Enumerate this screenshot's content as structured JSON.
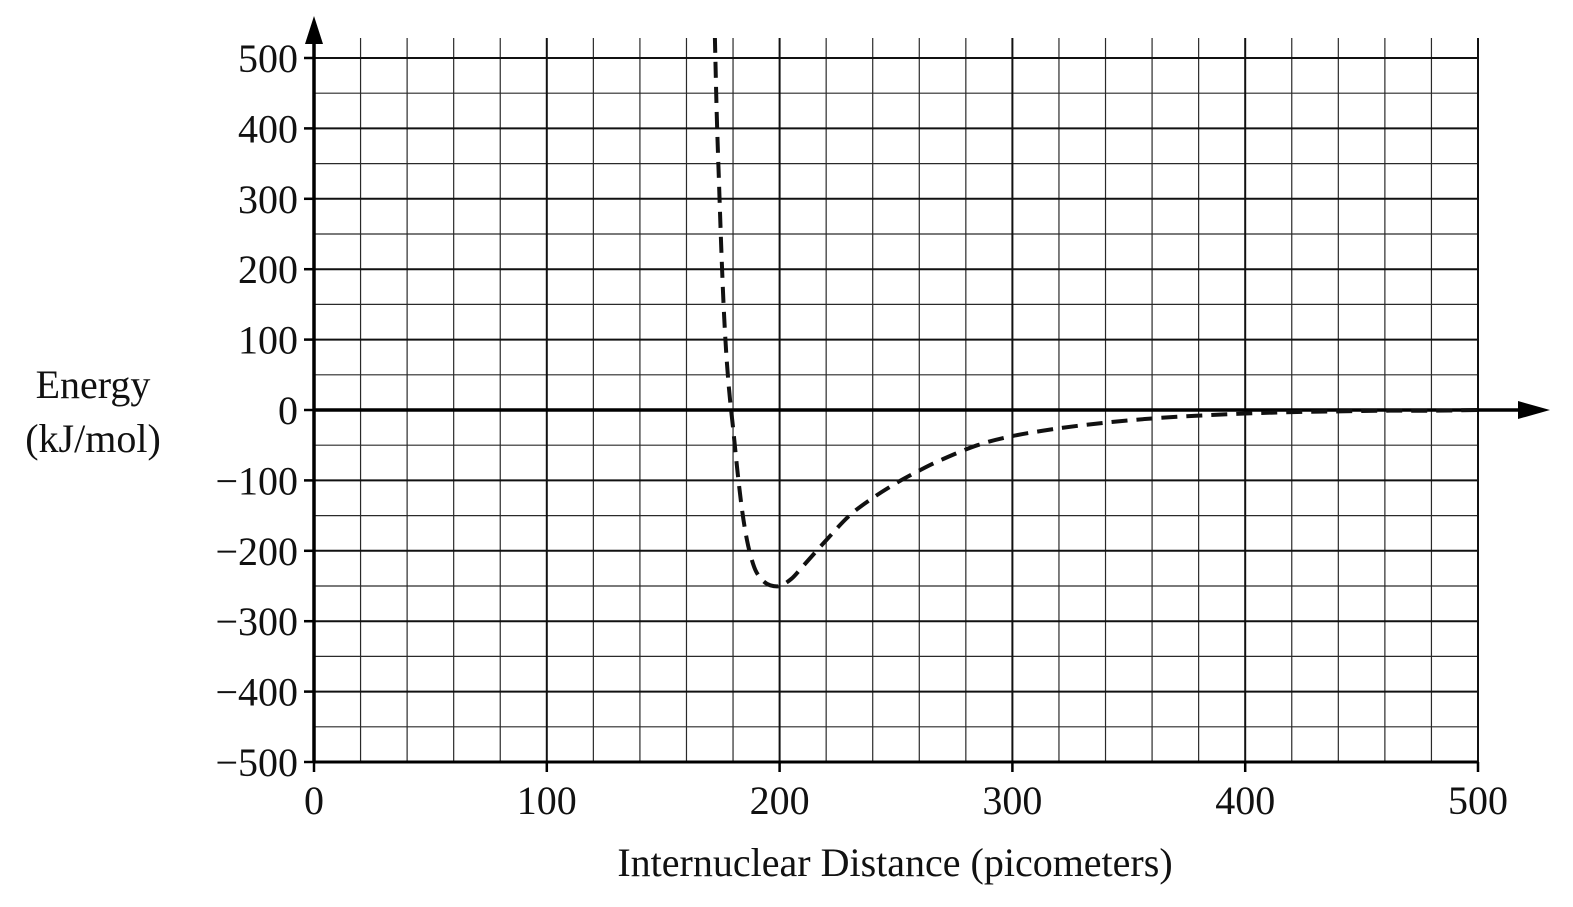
{
  "chart_data": {
    "type": "line",
    "title": "",
    "xlabel": "Internuclear Distance (picometers)",
    "ylabel_lines": [
      "Energy",
      "(kJ/mol)"
    ],
    "xlim": [
      0,
      500
    ],
    "ylim": [
      -500,
      500
    ],
    "x_ticks": [
      0,
      100,
      200,
      300,
      400,
      500
    ],
    "y_ticks": [
      500,
      400,
      300,
      200,
      100,
      0,
      -100,
      -200,
      -300,
      -400,
      -500
    ],
    "x_tick_labels": [
      "0",
      "100",
      "200",
      "300",
      "400",
      "500"
    ],
    "y_tick_labels": [
      "500",
      "400",
      "300",
      "200",
      "100",
      "0",
      "−100",
      "−200",
      "−300",
      "−400",
      "−500"
    ],
    "x_minor_step": 20,
    "y_minor_step": 50,
    "grid": true,
    "legend": "none",
    "line_style": "dashed",
    "line_color": "#111111",
    "series": [
      {
        "x": [
          172.2,
          173,
          174,
          175,
          176,
          177,
          178,
          179,
          180,
          182,
          184,
          186,
          188,
          190,
          193,
          196,
          200,
          205,
          210,
          220,
          230,
          240,
          250,
          260,
          270,
          285,
          300,
          320,
          340,
          360,
          380,
          400,
          420,
          440,
          460,
          480,
          500
        ],
        "y": [
          530,
          420,
          320,
          225,
          145,
          85,
          40,
          5,
          -25,
          -90,
          -145,
          -185,
          -212,
          -230,
          -243,
          -249,
          -250,
          -240,
          -222,
          -185,
          -150,
          -125,
          -104,
          -86,
          -70,
          -50,
          -37,
          -26,
          -18,
          -12,
          -8,
          -5,
          -3,
          -2,
          -1,
          -1,
          0
        ]
      }
    ]
  }
}
